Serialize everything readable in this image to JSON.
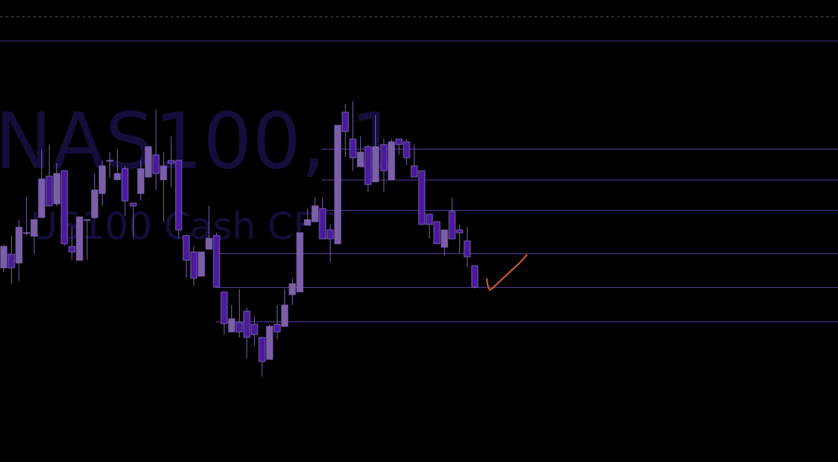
{
  "watermark": {
    "symbol_line": "NAS100, 1",
    "description_line": "US100 Cash CFD"
  },
  "colors": {
    "background": "#000000",
    "bull_candle": "#7b5ea7",
    "bear_candle": "#4a1a9e",
    "candle_border": "#7d62b5",
    "level_line": "#5a3ea6",
    "annotation_check": "#e8621f",
    "watermark": "#150d3a"
  },
  "annotation": {
    "type": "check-mark"
  },
  "chart_data": {
    "type": "candlestick",
    "title": "",
    "xlabel": "",
    "ylabel": "",
    "grid": false,
    "axes_visible": false,
    "candle_fields": [
      "open",
      "high",
      "low",
      "close"
    ],
    "candles": [
      [
        282,
        315,
        276,
        313
      ],
      [
        302,
        329,
        259,
        282
      ],
      [
        289,
        352,
        263,
        341
      ],
      [
        333,
        384,
        329,
        333
      ],
      [
        328,
        352,
        302,
        352
      ],
      [
        355,
        454,
        355,
        411
      ],
      [
        415,
        461,
        371,
        372
      ],
      [
        375,
        434,
        372,
        419
      ],
      [
        423,
        423,
        314,
        317
      ],
      [
        313,
        341,
        294,
        305
      ],
      [
        293,
        356,
        293,
        356
      ],
      [
        352,
        352,
        294,
        352
      ],
      [
        355,
        419,
        353,
        395
      ],
      [
        390,
        438,
        372,
        430
      ],
      [
        438,
        450,
        412,
        438
      ],
      [
        410,
        454,
        410,
        419
      ],
      [
        426,
        430,
        357,
        379
      ],
      [
        376,
        376,
        325,
        372
      ],
      [
        390,
        438,
        380,
        426
      ],
      [
        414,
        458,
        412,
        458
      ],
      [
        446,
        512,
        395,
        419
      ],
      [
        410,
        450,
        349,
        430
      ],
      [
        438,
        473,
        399,
        434
      ],
      [
        438,
        438,
        325,
        337
      ],
      [
        329,
        329,
        268,
        293
      ],
      [
        305,
        313,
        256,
        267
      ],
      [
        270,
        305,
        270,
        305
      ],
      [
        309,
        372,
        309,
        325
      ],
      [
        329,
        333,
        254,
        254
      ],
      [
        247,
        247,
        185,
        201
      ],
      [
        189,
        228,
        189,
        208
      ],
      [
        203,
        251,
        181,
        189
      ],
      [
        219,
        224,
        151,
        181
      ],
      [
        200,
        212,
        169,
        185
      ],
      [
        181,
        181,
        124,
        146
      ],
      [
        149,
        200,
        149,
        197
      ],
      [
        200,
        228,
        178,
        189
      ],
      [
        197,
        251,
        197,
        228
      ],
      [
        243,
        267,
        228,
        259
      ],
      [
        247,
        333,
        247,
        333
      ],
      [
        344,
        368,
        344,
        352
      ],
      [
        349,
        384,
        349,
        372
      ],
      [
        368,
        384,
        324,
        324
      ],
      [
        337,
        345,
        290,
        324
      ],
      [
        317,
        489,
        317,
        489
      ],
      [
        508,
        520,
        443,
        480
      ],
      [
        469,
        524,
        423,
        442
      ],
      [
        429,
        473,
        429,
        450
      ],
      [
        458,
        461,
        392,
        403
      ],
      [
        407,
        504,
        407,
        458
      ],
      [
        461,
        469,
        392,
        423
      ],
      [
        410,
        469,
        410,
        465
      ],
      [
        469,
        469,
        446,
        461
      ],
      [
        465,
        469,
        431,
        442
      ],
      [
        430,
        461,
        414,
        414
      ],
      [
        423,
        423,
        345,
        345
      ],
      [
        360,
        360,
        325,
        345
      ],
      [
        349,
        349,
        317,
        317
      ],
      [
        312,
        337,
        299,
        337
      ],
      [
        364,
        384,
        324,
        324
      ],
      [
        337,
        345,
        303,
        333
      ],
      [
        321,
        341,
        283,
        298
      ],
      [
        285,
        285,
        252,
        254
      ]
    ],
    "horizontal_levels": [
      612,
      455,
      410,
      366,
      303,
      254,
      204
    ],
    "dashed_levels": [
      647
    ]
  }
}
